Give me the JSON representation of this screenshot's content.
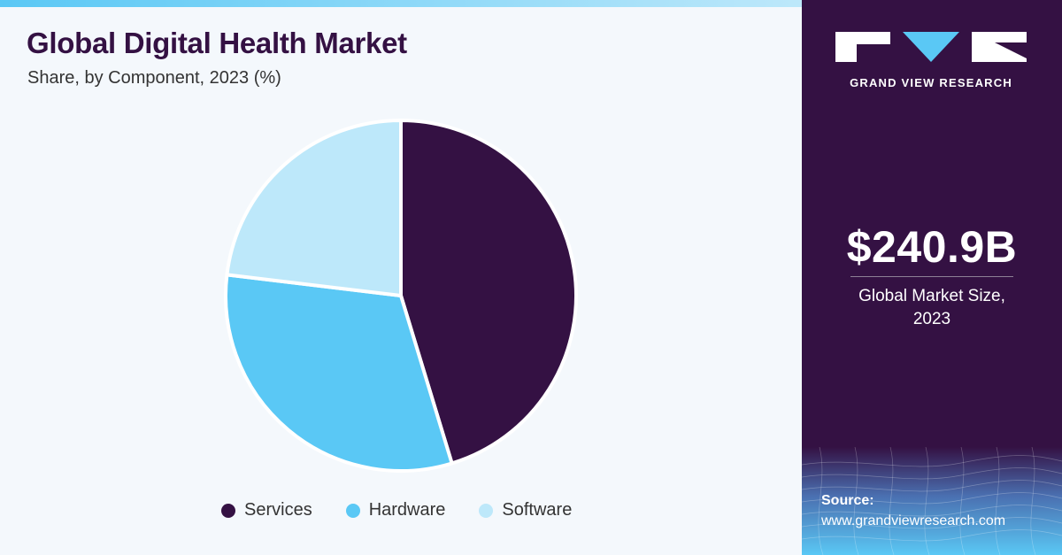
{
  "header": {
    "title": "Global Digital Health Market",
    "subtitle": "Share, by Component, 2023 (%)"
  },
  "chart_data": {
    "type": "pie",
    "categories": [
      "Services",
      "Hardware",
      "Software"
    ],
    "values": [
      45.3,
      31.6,
      23.1
    ],
    "colors": [
      "#341143",
      "#5ac8f5",
      "#bde8fa"
    ],
    "title": "Global Digital Health Market",
    "subtitle": "Share, by Component, 2023 (%)",
    "legend_position": "bottom"
  },
  "sidebar": {
    "brand": "GRAND VIEW RESEARCH",
    "market_size_value": "$240.9B",
    "market_size_label_line1": "Global Market Size,",
    "market_size_label_line2": "2023",
    "source_label": "Source:",
    "source_url": "www.grandviewresearch.com"
  },
  "colors": {
    "accent": "#5ac8f5",
    "brand_dark": "#341143",
    "background": "#f4f8fc"
  }
}
